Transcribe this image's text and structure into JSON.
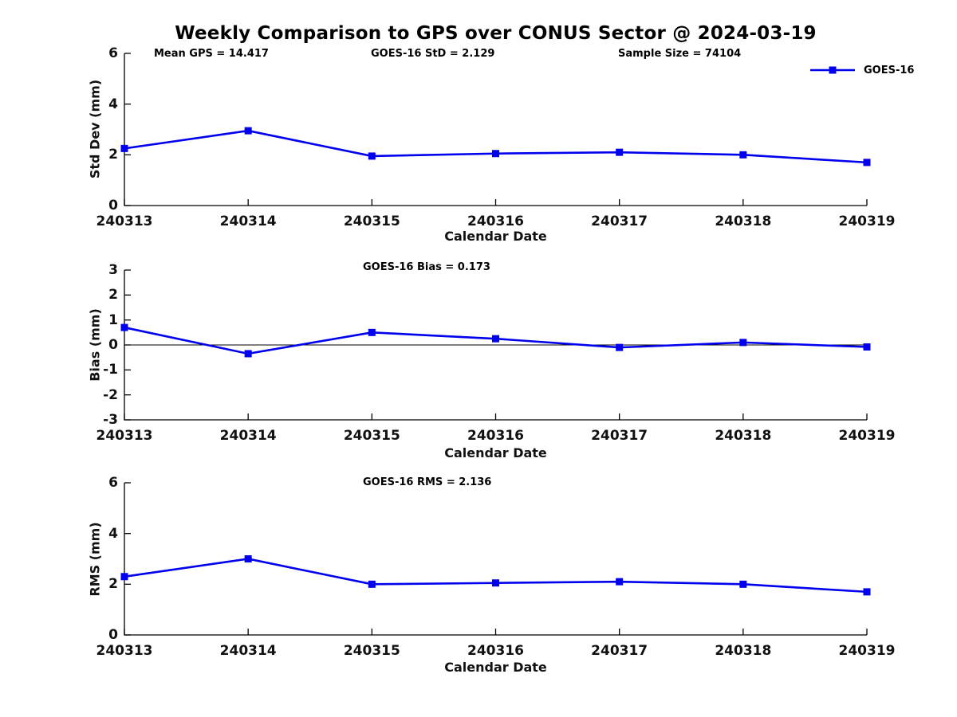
{
  "title": "Weekly Comparison to GPS over CONUS Sector @ 2024-03-19",
  "colors": {
    "series": "#0000EE",
    "axis": "#000000"
  },
  "legend": {
    "label": "GOES-16"
  },
  "chart_data": [
    {
      "type": "line",
      "series_name": "GOES-16",
      "categories": [
        "240313",
        "240314",
        "240315",
        "240316",
        "240317",
        "240318",
        "240319"
      ],
      "values": [
        2.25,
        2.95,
        1.95,
        2.05,
        2.1,
        2.0,
        1.7
      ],
      "title": "",
      "xlabel": "Calendar Date",
      "ylabel": "Std Dev (mm)",
      "ylim": [
        0,
        6
      ],
      "yticks": [
        0,
        2,
        4,
        6
      ],
      "grid": false,
      "legend_position": "top-right",
      "annotations": [
        {
          "text": "Mean GPS = 14.417"
        },
        {
          "text": "GOES-16 StD = 2.129"
        },
        {
          "text": "Sample Size = 74104"
        }
      ]
    },
    {
      "type": "line",
      "series_name": "GOES-16",
      "categories": [
        "240313",
        "240314",
        "240315",
        "240316",
        "240317",
        "240318",
        "240319"
      ],
      "values": [
        0.7,
        -0.35,
        0.5,
        0.25,
        -0.1,
        0.1,
        -0.08
      ],
      "title": "",
      "xlabel": "Calendar Date",
      "ylabel": "Bias (mm)",
      "ylim": [
        -3,
        3
      ],
      "yticks": [
        -3,
        -2,
        -1,
        0,
        1,
        2,
        3
      ],
      "zero_line": true,
      "grid": false,
      "annotations": [
        {
          "text": "GOES-16 Bias  = 0.173"
        }
      ]
    },
    {
      "type": "line",
      "series_name": "GOES-16",
      "categories": [
        "240313",
        "240314",
        "240315",
        "240316",
        "240317",
        "240318",
        "240319"
      ],
      "values": [
        2.3,
        3.0,
        2.0,
        2.05,
        2.1,
        2.0,
        1.7
      ],
      "title": "",
      "xlabel": "Calendar Date",
      "ylabel": "RMS (mm)",
      "ylim": [
        0,
        6
      ],
      "yticks": [
        0,
        2,
        4,
        6
      ],
      "grid": false,
      "annotations": [
        {
          "text": "GOES-16 RMS = 2.136"
        }
      ]
    }
  ]
}
